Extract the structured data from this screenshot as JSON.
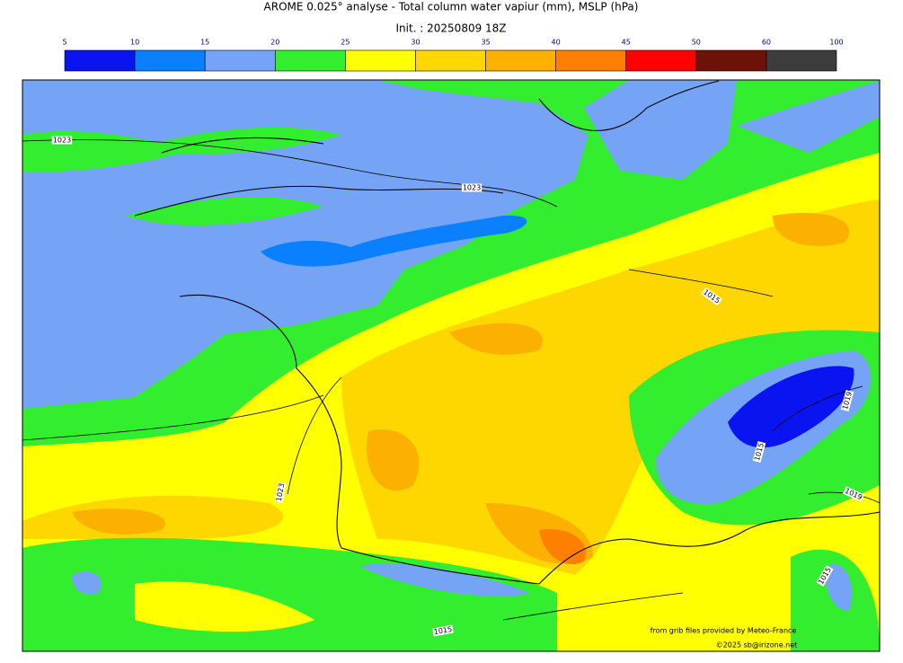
{
  "title": "AROME 0.025° analyse - Total column water vapiur (mm), MSLP (hPa)",
  "subtitle": "Init. : 20250809 18Z",
  "colorbar": {
    "ticks": [
      5,
      10,
      15,
      20,
      25,
      30,
      35,
      40,
      45,
      50,
      60,
      100
    ],
    "colors": [
      "#0a14f0",
      "#0a80ff",
      "#75a3f6",
      "#33ee2e",
      "#ffff00",
      "#ffd700",
      "#fcb100",
      "#ff8000",
      "#ff0000",
      "#6c1206",
      "#3c3c3c"
    ]
  },
  "isobar_labels": [
    "1023",
    "1023",
    "1015",
    "1023",
    "1015",
    "1019",
    "1019",
    "1015",
    "1015"
  ],
  "credits": [
    "from grib files provided by  Meteo-France",
    "©2025 sb@irizone.net"
  ]
}
